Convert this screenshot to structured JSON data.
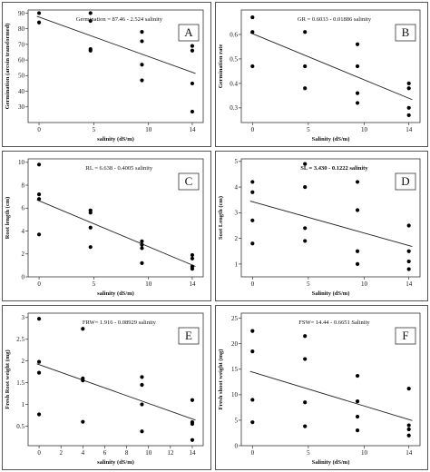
{
  "chart_data": [
    {
      "type": "scatter",
      "panel_label": "A",
      "equation": "Germination = 87.46 - 2.524 salinity",
      "xlabel": "salinity (dS/m)",
      "ylabel": "Germination (arcsin transformed)",
      "xlim": [
        -1,
        15
      ],
      "ylim": [
        20,
        92
      ],
      "xticks": [
        0,
        5,
        10,
        14
      ],
      "yticks": [
        30,
        40,
        50,
        60,
        70,
        80,
        90
      ],
      "x": [
        0,
        0,
        4.7,
        4.7,
        4.7,
        4.7,
        9.4,
        9.4,
        9.4,
        9.4,
        14,
        14,
        14,
        14
      ],
      "y": [
        90,
        84,
        90,
        85,
        67,
        66,
        78,
        72,
        57,
        47,
        69,
        66,
        45,
        27
      ],
      "fit": {
        "intercept": 87.46,
        "slope": -2.524
      },
      "grid": false,
      "bold_equation": false
    },
    {
      "type": "scatter",
      "panel_label": "B",
      "equation": "GR = 0.6033 - 0.01886 salinity",
      "xlabel": "Salinity (dS/m)",
      "ylabel": "Germination rate",
      "xlim": [
        -1,
        15
      ],
      "ylim": [
        0.24,
        0.7
      ],
      "xticks": [
        0,
        5,
        10,
        14
      ],
      "yticks": [
        0.3,
        0.4,
        0.5,
        0.6
      ],
      "x": [
        0,
        0,
        0,
        4.7,
        4.7,
        4.7,
        9.4,
        9.4,
        9.4,
        9.4,
        14,
        14,
        14,
        14
      ],
      "y": [
        0.67,
        0.61,
        0.47,
        0.61,
        0.47,
        0.38,
        0.56,
        0.47,
        0.36,
        0.32,
        0.4,
        0.38,
        0.3,
        0.27
      ],
      "fit": {
        "intercept": 0.6033,
        "slope": -0.01886
      },
      "grid": false,
      "bold_equation": false
    },
    {
      "type": "scatter",
      "panel_label": "C",
      "equation": "RL = 6.638 - 0.4005 salinity",
      "xlabel": "salinity (dS/m)",
      "ylabel": "Root length (cm)",
      "xlim": [
        -1,
        15
      ],
      "ylim": [
        0,
        10.3
      ],
      "xticks": [
        0,
        5,
        10,
        14
      ],
      "yticks": [
        0,
        2,
        4,
        6,
        8,
        10
      ],
      "x": [
        0,
        0,
        0,
        0,
        4.7,
        4.7,
        4.7,
        4.7,
        9.4,
        9.4,
        9.4,
        9.4,
        14,
        14,
        14,
        14
      ],
      "y": [
        9.8,
        7.2,
        6.8,
        3.7,
        5.8,
        5.6,
        4.3,
        2.6,
        3.1,
        2.8,
        2.5,
        1.2,
        1.9,
        1.6,
        0.9,
        0.7
      ],
      "fit": {
        "intercept": 6.638,
        "slope": -0.4005
      },
      "grid": false,
      "bold_equation": false
    },
    {
      "type": "scatter",
      "panel_label": "D",
      "equation": "SL = 3.430 - 0.1222 salinity",
      "xlabel": "Salinity (dS/m)",
      "ylabel": "Soot Length (cm)",
      "xlim": [
        -1,
        15
      ],
      "ylim": [
        0.5,
        5.1
      ],
      "xticks": [
        0,
        5,
        10,
        14
      ],
      "yticks": [
        1,
        2,
        3,
        4,
        5
      ],
      "x": [
        0,
        0,
        0,
        0,
        4.7,
        4.7,
        4.7,
        4.7,
        9.4,
        9.4,
        9.4,
        9.4,
        14,
        14,
        14,
        14
      ],
      "y": [
        4.2,
        3.8,
        2.7,
        1.8,
        4.9,
        4.0,
        2.4,
        1.9,
        4.2,
        3.1,
        1.5,
        1.0,
        2.5,
        1.5,
        1.1,
        0.8
      ],
      "fit": {
        "intercept": 3.43,
        "slope": -0.1222
      },
      "grid": false,
      "bold_equation": true
    },
    {
      "type": "scatter",
      "panel_label": "E",
      "equation": "FRW= 1.916 - 0.08929 salinity",
      "xlabel": "salinity (dS/m)",
      "ylabel": "Fresh Root weight (mg)",
      "xlim": [
        -1,
        15
      ],
      "ylim": [
        0.05,
        3.1
      ],
      "xticks": [
        0,
        2,
        4,
        6,
        8,
        10,
        12,
        14
      ],
      "yticks": [
        0.5,
        1.0,
        1.5,
        2.0,
        2.5,
        3.0
      ],
      "x": [
        0,
        0,
        0,
        0,
        4,
        4,
        4,
        4,
        9.4,
        9.4,
        9.4,
        9.4,
        14,
        14,
        14,
        14
      ],
      "y": [
        2.97,
        1.98,
        1.73,
        0.77,
        2.74,
        1.6,
        1.55,
        0.6,
        1.63,
        1.45,
        1.0,
        0.38,
        1.1,
        0.59,
        0.55,
        0.18
      ],
      "fit": {
        "intercept": 1.916,
        "slope": -0.08929
      },
      "grid": false,
      "bold_equation": false
    },
    {
      "type": "scatter",
      "panel_label": "F",
      "equation": "FSW= 14.44 - 0.6651 Salinity",
      "xlabel": "Salinity (dS/m)",
      "ylabel": "Fresh shoot weight (mg)",
      "xlim": [
        -1,
        15
      ],
      "ylim": [
        0,
        26
      ],
      "xticks": [
        0,
        5,
        10,
        14
      ],
      "yticks": [
        0,
        5,
        10,
        15,
        20,
        25
      ],
      "x": [
        0,
        0,
        0,
        0,
        4.7,
        4.7,
        4.7,
        4.7,
        9.4,
        9.4,
        9.4,
        9.4,
        14,
        14,
        14,
        14
      ],
      "y": [
        22.5,
        18.5,
        9.0,
        4.6,
        21.5,
        17.0,
        8.5,
        3.8,
        13.7,
        8.7,
        5.7,
        3.0,
        11.2,
        4.0,
        3.2,
        2.0
      ],
      "fit": {
        "intercept": 14.44,
        "slope": -0.6651
      },
      "grid": false,
      "bold_equation": false
    }
  ]
}
